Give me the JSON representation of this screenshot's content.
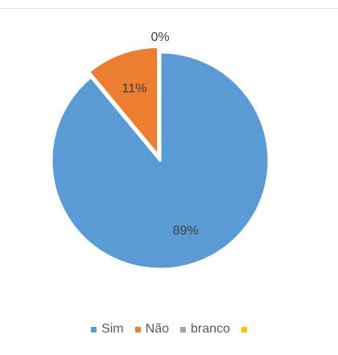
{
  "chart_data": {
    "type": "pie",
    "title": "",
    "categories": [
      "Sim",
      "Não",
      "branco",
      ""
    ],
    "values": [
      89,
      11,
      0,
      0
    ],
    "data_labels": [
      "89%",
      "11%",
      "0%",
      ""
    ],
    "colors": [
      "#5B9BD5",
      "#ED7D31",
      "#A5A5A5",
      "#FFC000"
    ],
    "start_angle_deg": 0,
    "direction": "clockwise",
    "exploded_slice": "Não",
    "legend": "bottom"
  }
}
